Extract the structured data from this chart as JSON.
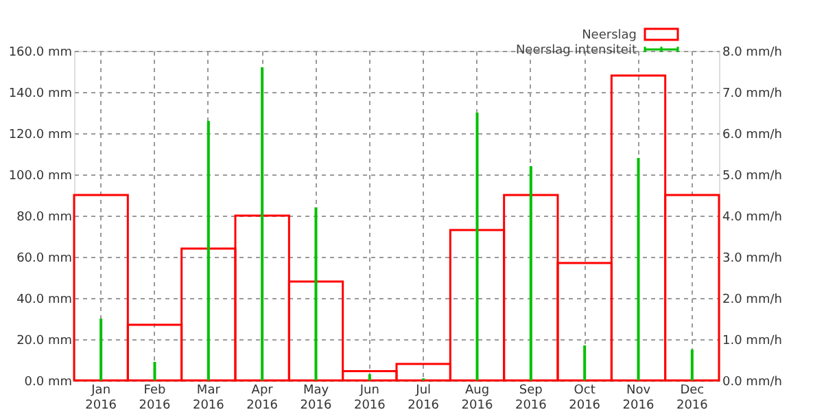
{
  "chart_data": {
    "type": "bar",
    "categories": [
      "Jan 2016",
      "Feb 2016",
      "Mar 2016",
      "Apr 2016",
      "May 2016",
      "Jun 2016",
      "Jul 2016",
      "Aug 2016",
      "Sep 2016",
      "Oct 2016",
      "Nov 2016",
      "Dec 2016"
    ],
    "series": [
      {
        "name": "Neerslag",
        "color": "#ff0000",
        "values": [
          90,
          27,
          64,
          80,
          48,
          4.5,
          8,
          73,
          90,
          57,
          148,
          90
        ]
      },
      {
        "name": "Neerslag intensiteit",
        "axis": "y2",
        "color": "#00c000",
        "values": [
          1.5,
          0.45,
          6.3,
          7.6,
          4.2,
          0.15,
          0.05,
          6.5,
          5.2,
          0.85,
          5.4,
          0.75
        ]
      }
    ],
    "ylim": [
      0,
      160
    ],
    "yticks": [
      {
        "value": 0,
        "label": "0.0 mm"
      },
      {
        "value": 20,
        "label": "20.0 mm"
      },
      {
        "value": 40,
        "label": "40.0 mm"
      },
      {
        "value": 60,
        "label": "60.0 mm"
      },
      {
        "value": 80,
        "label": "80.0 mm"
      },
      {
        "value": 100,
        "label": "100.0 mm"
      },
      {
        "value": 120,
        "label": "120.0 mm"
      },
      {
        "value": 140,
        "label": "140.0 mm"
      },
      {
        "value": 160,
        "label": "160.0 mm"
      }
    ],
    "y2lim": [
      0,
      8
    ],
    "y2ticks": [
      {
        "value": 0,
        "label": "0.0 mm/h"
      },
      {
        "value": 1,
        "label": "1.0 mm/h"
      },
      {
        "value": 2,
        "label": "2.0 mm/h"
      },
      {
        "value": 3,
        "label": "3.0 mm/h"
      },
      {
        "value": 4,
        "label": "4.0 mm/h"
      },
      {
        "value": 5,
        "label": "5.0 mm/h"
      },
      {
        "value": 6,
        "label": "6.0 mm/h"
      },
      {
        "value": 7,
        "label": "7.0 mm/h"
      },
      {
        "value": 8,
        "label": "8.0 mm/h"
      }
    ],
    "grid": true,
    "legend": "top right"
  }
}
